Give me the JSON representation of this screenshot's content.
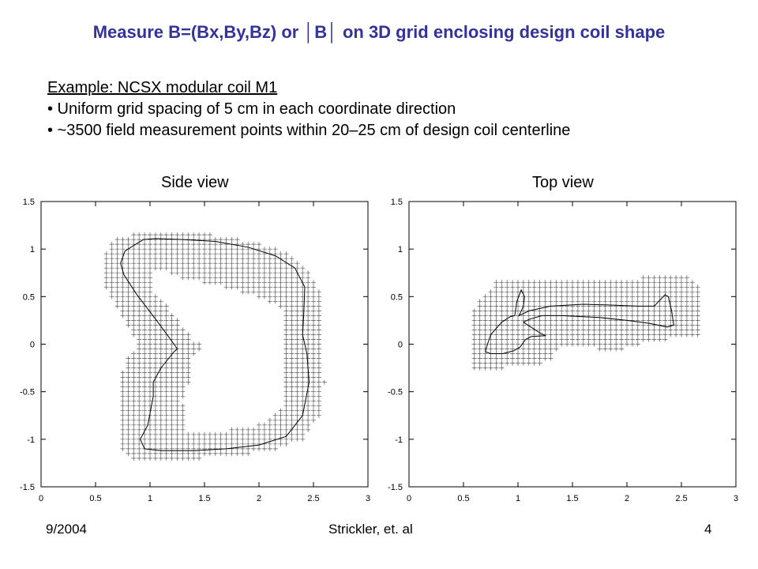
{
  "slide": {
    "title": "Measure B=(Bx,By,Bz) or │B│ on 3D grid enclosing design coil shape",
    "example_heading": "Example: NCSX modular coil M1",
    "bullets": [
      "• Uniform grid spacing of 5 cm in each coordinate direction",
      "• ~3500 field measurement points within 20–25 cm of design coil centerline"
    ],
    "footer": {
      "date": "9/2004",
      "author": "Strickler, et. al",
      "page": "4"
    }
  },
  "chart_data": [
    {
      "type": "scatter",
      "title": "Side view",
      "xlim": [
        0,
        3
      ],
      "ylim": [
        -1.5,
        1.5
      ],
      "xticks": [
        "0",
        "0.5",
        "1",
        "1.5",
        "2",
        "2.5",
        "3"
      ],
      "yticks": [
        "1.5",
        "1",
        "0.5",
        "0",
        "-0.5",
        "-1",
        "-1.5"
      ],
      "grid_spacing": 0.05,
      "marker": "plus",
      "coil": [
        [
          0.94,
          1.1
        ],
        [
          1.05,
          1.11
        ],
        [
          1.3,
          1.1
        ],
        [
          1.6,
          1.08
        ],
        [
          1.9,
          1.02
        ],
        [
          2.15,
          0.93
        ],
        [
          2.33,
          0.8
        ],
        [
          2.42,
          0.6
        ],
        [
          2.41,
          0.3
        ],
        [
          2.4,
          0.1
        ],
        [
          2.44,
          -0.1
        ],
        [
          2.46,
          -0.4
        ],
        [
          2.4,
          -0.75
        ],
        [
          2.25,
          -0.97
        ],
        [
          2.0,
          -1.06
        ],
        [
          1.7,
          -1.1
        ],
        [
          1.4,
          -1.12
        ],
        [
          1.1,
          -1.12
        ],
        [
          0.95,
          -1.1
        ],
        [
          0.91,
          -1.0
        ],
        [
          0.98,
          -0.85
        ],
        [
          1.03,
          -0.55
        ],
        [
          1.03,
          -0.4
        ],
        [
          1.1,
          -0.25
        ],
        [
          1.22,
          -0.08
        ],
        [
          1.25,
          -0.05
        ],
        [
          1.22,
          0.0
        ],
        [
          1.06,
          0.25
        ],
        [
          0.88,
          0.52
        ],
        [
          0.76,
          0.73
        ],
        [
          0.73,
          0.85
        ],
        [
          0.77,
          0.98
        ],
        [
          0.94,
          1.1
        ]
      ],
      "region_outer": [
        [
          0.82,
          1.15
        ],
        [
          1.02,
          1.2
        ],
        [
          1.4,
          1.18
        ],
        [
          1.75,
          1.12
        ],
        [
          2.05,
          1.05
        ],
        [
          2.28,
          0.95
        ],
        [
          2.45,
          0.8
        ],
        [
          2.55,
          0.58
        ],
        [
          2.57,
          0.3
        ],
        [
          2.58,
          0.0
        ],
        [
          2.6,
          -0.4
        ],
        [
          2.55,
          -0.75
        ],
        [
          2.4,
          -1.0
        ],
        [
          2.15,
          -1.1
        ],
        [
          1.8,
          -1.17
        ],
        [
          1.45,
          -1.2
        ],
        [
          1.1,
          -1.22
        ],
        [
          0.82,
          -1.21
        ],
        [
          0.74,
          -1.1
        ],
        [
          0.74,
          -0.3
        ],
        [
          0.82,
          -0.08
        ],
        [
          0.9,
          0.0
        ],
        [
          0.7,
          0.4
        ],
        [
          0.58,
          0.6
        ],
        [
          0.57,
          0.9
        ],
        [
          0.64,
          1.08
        ],
        [
          0.82,
          1.15
        ]
      ],
      "region_inner": [
        [
          1.05,
          0.8
        ],
        [
          1.35,
          0.68
        ],
        [
          1.7,
          0.6
        ],
        [
          2.0,
          0.5
        ],
        [
          2.2,
          0.38
        ],
        [
          2.22,
          0.0
        ],
        [
          2.25,
          -0.4
        ],
        [
          2.2,
          -0.7
        ],
        [
          2.0,
          -0.85
        ],
        [
          1.6,
          -0.92
        ],
        [
          1.35,
          -0.9
        ],
        [
          1.3,
          -0.6
        ],
        [
          1.4,
          -0.25
        ],
        [
          1.4,
          -0.1
        ],
        [
          1.5,
          -0.04
        ],
        [
          1.4,
          0.05
        ],
        [
          1.22,
          0.3
        ],
        [
          1.05,
          0.55
        ],
        [
          1.0,
          0.72
        ],
        [
          1.05,
          0.8
        ]
      ]
    },
    {
      "type": "scatter",
      "title": "Top view",
      "xlim": [
        0,
        3
      ],
      "ylim": [
        -1.5,
        1.5
      ],
      "xticks": [
        "0",
        "0.5",
        "1",
        "1.5",
        "2",
        "2.5",
        "3"
      ],
      "yticks": [
        "1.5",
        "1",
        "0.5",
        "0",
        "-0.5",
        "-1",
        "-1.5"
      ],
      "grid_spacing": 0.05,
      "marker": "plus",
      "coil": [
        [
          0.7,
          -0.08
        ],
        [
          0.72,
          0.0
        ],
        [
          0.75,
          0.1
        ],
        [
          0.85,
          0.23
        ],
        [
          0.93,
          0.29
        ],
        [
          0.97,
          0.3
        ],
        [
          0.99,
          0.45
        ],
        [
          1.03,
          0.57
        ],
        [
          1.06,
          0.5
        ],
        [
          1.05,
          0.4
        ],
        [
          1.01,
          0.3
        ],
        [
          1.1,
          0.35
        ],
        [
          1.3,
          0.4
        ],
        [
          1.6,
          0.42
        ],
        [
          1.9,
          0.41
        ],
        [
          2.1,
          0.4
        ],
        [
          2.25,
          0.4
        ],
        [
          2.35,
          0.52
        ],
        [
          2.38,
          0.5
        ],
        [
          2.41,
          0.35
        ],
        [
          2.43,
          0.2
        ],
        [
          2.37,
          0.18
        ],
        [
          2.2,
          0.22
        ],
        [
          2.0,
          0.25
        ],
        [
          1.75,
          0.28
        ],
        [
          1.4,
          0.3
        ],
        [
          1.22,
          0.3
        ],
        [
          1.1,
          0.26
        ],
        [
          1.05,
          0.23
        ],
        [
          1.2,
          0.12
        ],
        [
          1.25,
          0.09
        ],
        [
          1.12,
          0.08
        ],
        [
          1.07,
          0.05
        ],
        [
          1.02,
          -0.03
        ],
        [
          0.96,
          -0.07
        ],
        [
          0.86,
          -0.1
        ],
        [
          0.75,
          -0.1
        ],
        [
          0.7,
          -0.08
        ]
      ],
      "region": [
        [
          0.58,
          0.35
        ],
        [
          0.82,
          0.7
        ],
        [
          1.52,
          0.7
        ],
        [
          1.6,
          0.68
        ],
        [
          2.1,
          0.69
        ],
        [
          2.22,
          0.72
        ],
        [
          2.4,
          0.72
        ],
        [
          2.6,
          0.7
        ],
        [
          2.65,
          0.6
        ],
        [
          2.65,
          0.1
        ],
        [
          2.35,
          0.05
        ],
        [
          2.1,
          0.0
        ],
        [
          1.9,
          -0.07
        ],
        [
          1.75,
          -0.05
        ],
        [
          1.5,
          -0.02
        ],
        [
          1.38,
          -0.05
        ],
        [
          1.3,
          -0.15
        ],
        [
          1.2,
          -0.22
        ],
        [
          1.05,
          -0.2
        ],
        [
          0.85,
          -0.25
        ],
        [
          0.58,
          -0.25
        ]
      ]
    }
  ]
}
